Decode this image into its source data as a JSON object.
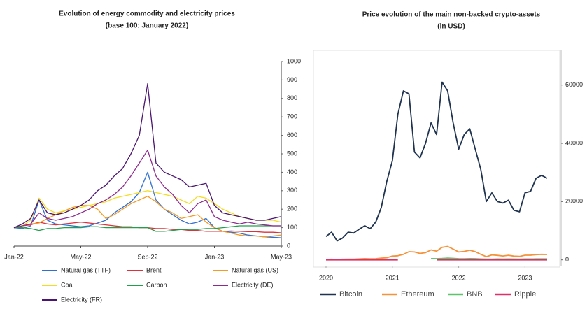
{
  "chart_data": [
    {
      "type": "line",
      "title": "Evolution of energy commodity and electricity prices",
      "subtitle": "(base 100: January 2022)",
      "categories": [
        "Jan-22",
        null,
        null,
        null,
        null,
        null,
        null,
        null,
        "May-22",
        null,
        null,
        null,
        null,
        null,
        null,
        null,
        "Sep-22",
        null,
        null,
        null,
        null,
        null,
        null,
        null,
        "Jan-23",
        null,
        null,
        null,
        null,
        null,
        null,
        null,
        "May-23"
      ],
      "ylim": [
        0,
        1000
      ],
      "yticks": [
        0,
        100,
        200,
        300,
        400,
        500,
        600,
        700,
        800,
        900,
        1000
      ],
      "grid": false,
      "legend": "bottom",
      "series": [
        {
          "name": "Natural gas (TTF)",
          "color": "#2f6fd0",
          "values": [
            100,
            95,
            110,
            250,
            140,
            120,
            115,
            110,
            105,
            110,
            125,
            140,
            180,
            210,
            240,
            290,
            400,
            250,
            200,
            170,
            140,
            120,
            130,
            150,
            100,
            80,
            75,
            70,
            60,
            55,
            50,
            48,
            45
          ]
        },
        {
          "name": "Brent",
          "color": "#e0303c",
          "values": [
            100,
            110,
            115,
            130,
            120,
            115,
            120,
            125,
            130,
            125,
            120,
            115,
            110,
            105,
            105,
            100,
            100,
            95,
            95,
            90,
            90,
            85,
            85,
            80,
            80,
            80,
            82,
            80,
            78,
            78,
            75,
            75,
            72
          ]
        },
        {
          "name": "Natural gas (US)",
          "color": "#f59a23",
          "values": [
            100,
            110,
            120,
            125,
            150,
            170,
            190,
            210,
            220,
            220,
            200,
            150,
            170,
            200,
            230,
            250,
            270,
            240,
            200,
            180,
            150,
            160,
            170,
            130,
            100,
            80,
            70,
            60,
            55,
            55,
            50,
            55,
            60
          ]
        },
        {
          "name": "Coal",
          "color": "#f5dc1e",
          "values": [
            100,
            110,
            140,
            260,
            200,
            180,
            190,
            200,
            210,
            220,
            230,
            240,
            260,
            270,
            280,
            290,
            300,
            290,
            280,
            270,
            250,
            230,
            270,
            260,
            230,
            200,
            180,
            160,
            150,
            140,
            140,
            140,
            130
          ]
        },
        {
          "name": "Carbon",
          "color": "#21a04a",
          "values": [
            100,
            100,
            95,
            85,
            95,
            95,
            100,
            100,
            100,
            105,
            105,
            100,
            100,
            100,
            100,
            100,
            100,
            80,
            80,
            85,
            90,
            90,
            90,
            95,
            95,
            100,
            105,
            110,
            110,
            110,
            110,
            110,
            110
          ]
        },
        {
          "name": "Electricity (DE)",
          "color": "#8e2a8e",
          "values": [
            100,
            110,
            120,
            180,
            150,
            140,
            150,
            160,
            180,
            200,
            230,
            250,
            280,
            320,
            380,
            450,
            520,
            380,
            320,
            280,
            220,
            180,
            230,
            250,
            160,
            140,
            130,
            120,
            130,
            120,
            115,
            110,
            110
          ]
        },
        {
          "name": "Electricity (FR)",
          "color": "#4b1470",
          "values": [
            100,
            120,
            150,
            250,
            180,
            170,
            180,
            200,
            220,
            250,
            300,
            330,
            380,
            420,
            500,
            600,
            880,
            450,
            400,
            380,
            360,
            320,
            330,
            340,
            220,
            180,
            170,
            160,
            150,
            140,
            140,
            150,
            160
          ]
        }
      ]
    },
    {
      "type": "line",
      "title": "Price evolution of the main  non-backed crypto-assets",
      "subtitle": "(in USD)",
      "categories": [
        "2020",
        null,
        null,
        null,
        null,
        null,
        null,
        null,
        null,
        null,
        null,
        null,
        "2021",
        null,
        null,
        null,
        null,
        null,
        null,
        null,
        null,
        null,
        null,
        null,
        "2022",
        null,
        null,
        null,
        null,
        null,
        null,
        null,
        null,
        null,
        null,
        null,
        "2023",
        null,
        null,
        null,
        null
      ],
      "ylim": [
        -2000,
        70000
      ],
      "yticks": [
        0,
        20000,
        40000,
        60000
      ],
      "grid": false,
      "legend": "bottom",
      "series": [
        {
          "name": "Bitcoin",
          "color": "#1f3350",
          "values": [
            8000,
            9500,
            6500,
            7500,
            9500,
            9200,
            10500,
            11700,
            10700,
            13000,
            18000,
            27000,
            34000,
            50000,
            58000,
            57000,
            37000,
            35000,
            40000,
            47000,
            43000,
            61000,
            58000,
            47000,
            38000,
            43000,
            45000,
            38000,
            31000,
            20000,
            23000,
            20000,
            19500,
            20500,
            17000,
            16500,
            23000,
            23500,
            28000,
            29000,
            28000
          ]
        },
        {
          "name": "Ethereum",
          "color": "#f5933a",
          "values": [
            130,
            220,
            130,
            200,
            230,
            225,
            340,
            430,
            360,
            390,
            600,
            740,
            1300,
            1400,
            1900,
            2800,
            2700,
            2200,
            2500,
            3400,
            3000,
            4300,
            4600,
            3700,
            2700,
            2900,
            3300,
            2800,
            1900,
            1100,
            1700,
            1550,
            1330,
            1570,
            1300,
            1200,
            1600,
            1600,
            1800,
            1900,
            1850
          ]
        },
        {
          "name": "BNB",
          "color": "#5cc46a",
          "values": [
            null,
            null,
            null,
            null,
            null,
            null,
            null,
            null,
            null,
            null,
            null,
            null,
            null,
            null,
            null,
            null,
            null,
            null,
            null,
            420,
            400,
            480,
            600,
            520,
            400,
            380,
            420,
            400,
            300,
            230,
            260,
            300,
            280,
            310,
            290,
            250,
            300,
            310,
            320,
            330,
            320
          ]
        },
        {
          "name": "Ripple",
          "color": "#e0306a",
          "values": [
            0.2,
            0.25,
            0.17,
            0.19,
            0.2,
            0.19,
            0.22,
            0.28,
            0.24,
            0.25,
            0.5,
            0.4,
            0.3,
            0.5,
            null,
            null,
            null,
            null,
            null,
            null,
            1.0,
            1.1,
            1.0,
            0.85,
            0.7,
            0.8,
            0.8,
            0.7,
            0.5,
            0.35,
            0.35,
            0.35,
            0.48,
            0.46,
            0.4,
            0.35,
            0.4,
            0.38,
            0.5,
            0.47,
            0.45
          ]
        }
      ]
    }
  ]
}
